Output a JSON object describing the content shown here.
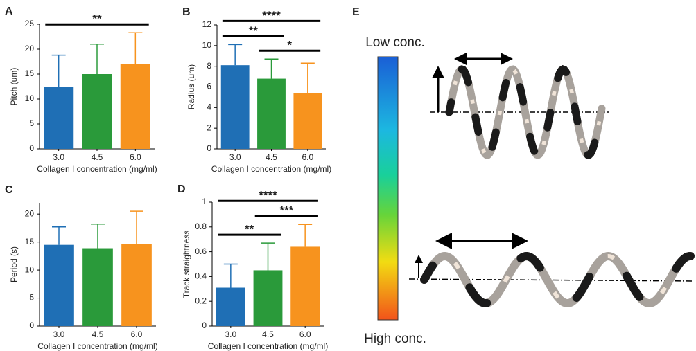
{
  "chart_data": [
    {
      "type": "bar",
      "panel": "A",
      "ylabel": "Pitch (um)",
      "xlabel": "Collagen I concentration (mg/ml)",
      "categories": [
        "3.0",
        "4.5",
        "6.0"
      ],
      "values": [
        12.5,
        15.0,
        17.0
      ],
      "errors": [
        6.3,
        6.0,
        6.3
      ],
      "colors": [
        "#1f6fb5",
        "#2a9a3a",
        "#f7931e"
      ],
      "ylim": [
        0,
        25
      ],
      "yticks": [
        0,
        5,
        10,
        15,
        20,
        25
      ],
      "grid": false,
      "significance": [
        {
          "pair": [
            "3.0",
            "6.0"
          ],
          "label": "**"
        }
      ]
    },
    {
      "type": "bar",
      "panel": "B",
      "ylabel": "Radius (um)",
      "xlabel": "Collagen I concentration (mg/ml)",
      "categories": [
        "3.0",
        "4.5",
        "6.0"
      ],
      "values": [
        8.1,
        6.8,
        5.4
      ],
      "errors": [
        2.0,
        1.9,
        2.9
      ],
      "colors": [
        "#1f6fb5",
        "#2a9a3a",
        "#f7931e"
      ],
      "ylim": [
        0,
        12
      ],
      "yticks": [
        0,
        2,
        4,
        6,
        8,
        10,
        12
      ],
      "grid": false,
      "significance": [
        {
          "pair": [
            "3.0",
            "6.0"
          ],
          "label": "****"
        },
        {
          "pair": [
            "3.0",
            "4.5"
          ],
          "label": "**"
        },
        {
          "pair": [
            "4.5",
            "6.0"
          ],
          "label": "*"
        }
      ]
    },
    {
      "type": "bar",
      "panel": "C",
      "ylabel": "Period (s)",
      "xlabel": "Collagen I concentration (mg/ml)",
      "categories": [
        "3.0",
        "4.5",
        "6.0"
      ],
      "values": [
        14.5,
        13.9,
        14.6
      ],
      "errors": [
        3.2,
        4.3,
        5.9
      ],
      "colors": [
        "#1f6fb5",
        "#2a9a3a",
        "#f7931e"
      ],
      "ylim": [
        0,
        22
      ],
      "yticks": [
        0,
        5,
        10,
        15,
        20
      ],
      "grid": false,
      "significance": []
    },
    {
      "type": "bar",
      "panel": "D",
      "ylabel": "Track straightness",
      "xlabel": "Collagen I concentration (mg/ml)",
      "categories": [
        "3.0",
        "4.5",
        "6.0"
      ],
      "values": [
        0.31,
        0.45,
        0.64
      ],
      "errors": [
        0.19,
        0.22,
        0.18
      ],
      "colors": [
        "#1f6fb5",
        "#2a9a3a",
        "#f7931e"
      ],
      "ylim": [
        0,
        1
      ],
      "yticks": [
        0,
        0.2,
        0.4,
        0.6,
        0.8,
        1
      ],
      "grid": false,
      "significance": [
        {
          "pair": [
            "3.0",
            "6.0"
          ],
          "label": "****"
        },
        {
          "pair": [
            "4.5",
            "6.0"
          ],
          "label": "***"
        },
        {
          "pair": [
            "3.0",
            "4.5"
          ],
          "label": "**"
        }
      ]
    }
  ],
  "diagram": {
    "panel": "E",
    "top_label": "Low conc.",
    "bottom_label": "High conc."
  }
}
